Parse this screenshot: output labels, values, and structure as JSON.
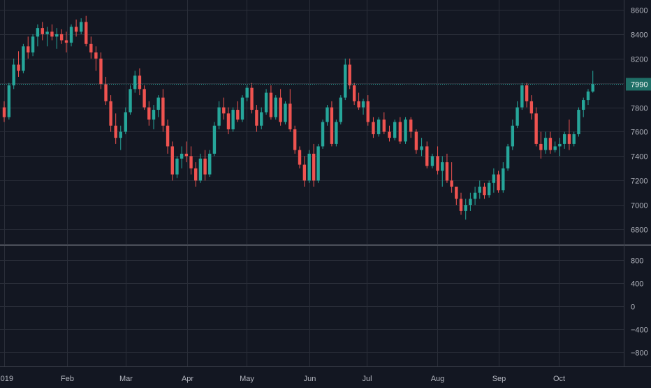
{
  "colors": {
    "background": "#131722",
    "grid": "#2a2e39",
    "axis_text": "#b2b5be",
    "up": "#26a69a",
    "down": "#ef5350",
    "divider": "#b2b5be",
    "last_price_bg": "#1f6f67"
  },
  "chart_data": [
    {
      "type": "candlestick",
      "title": "",
      "x_labels": [
        {
          "label": "2019",
          "t": 0.0
        },
        {
          "label": "Feb",
          "t": 31
        },
        {
          "label": "Mar",
          "t": 59
        },
        {
          "label": "Apr",
          "t": 90
        },
        {
          "label": "May",
          "t": 120
        },
        {
          "label": "Jun",
          "t": 151
        },
        {
          "label": "Jul",
          "t": 181
        },
        {
          "label": "Aug",
          "t": 212
        },
        {
          "label": "Sep",
          "t": 243
        },
        {
          "label": "Oct",
          "t": 273
        }
      ],
      "y_ticks": [
        6800,
        7000,
        7200,
        7400,
        7600,
        7800,
        8000,
        8200,
        8400,
        8600
      ],
      "y_tick_labels": [
        "6800",
        "7000",
        "7200",
        "7400",
        "7600",
        "7800",
        "8000",
        "8200",
        "8400",
        "8600"
      ],
      "ylim": [
        6680,
        8680
      ],
      "last_price": 7990,
      "last_price_label": "7990",
      "grid": true,
      "series": [
        {
          "ohlc_days": [
            [
              0,
              7800,
              7850,
              7680,
              7720
            ],
            [
              1,
              7720,
              8000,
              7700,
              7980
            ],
            [
              2,
              7980,
              8200,
              7950,
              8150
            ],
            [
              3,
              8150,
              8260,
              8050,
              8100
            ],
            [
              4,
              8100,
              8320,
              8080,
              8300
            ],
            [
              5,
              8300,
              8380,
              8200,
              8250
            ],
            [
              6,
              8250,
              8400,
              8220,
              8380
            ],
            [
              7,
              8380,
              8480,
              8300,
              8450
            ],
            [
              8,
              8450,
              8500,
              8350,
              8400
            ],
            [
              9,
              8400,
              8460,
              8300,
              8420
            ],
            [
              10,
              8420,
              8480,
              8350,
              8380
            ],
            [
              11,
              8380,
              8450,
              8280,
              8400
            ],
            [
              12,
              8400,
              8440,
              8320,
              8350
            ],
            [
              13,
              8350,
              8420,
              8250,
              8330
            ],
            [
              14,
              8330,
              8480,
              8300,
              8460
            ],
            [
              15,
              8460,
              8520,
              8380,
              8420
            ],
            [
              16,
              8420,
              8530,
              8400,
              8500
            ],
            [
              17,
              8500,
              8550,
              8300,
              8320
            ],
            [
              18,
              8320,
              8380,
              8200,
              8250
            ],
            [
              19,
              8250,
              8300,
              8100,
              8200
            ],
            [
              20,
              8200,
              8250,
              7950,
              7990
            ],
            [
              21,
              7990,
              8050,
              7820,
              7850
            ],
            [
              22,
              7850,
              7900,
              7600,
              7650
            ],
            [
              23,
              7650,
              7750,
              7500,
              7550
            ],
            [
              24,
              7550,
              7650,
              7450,
              7600
            ],
            [
              25,
              7600,
              7800,
              7580,
              7760
            ],
            [
              26,
              7760,
              7980,
              7740,
              7950
            ],
            [
              27,
              7950,
              8100,
              7920,
              8060
            ],
            [
              28,
              8060,
              8120,
              7900,
              7950
            ],
            [
              29,
              7950,
              7980,
              7780,
              7800
            ],
            [
              30,
              7800,
              7850,
              7650,
              7700
            ],
            [
              31,
              7700,
              7820,
              7620,
              7780
            ],
            [
              32,
              7780,
              7900,
              7720,
              7880
            ],
            [
              33,
              7880,
              7950,
              7600,
              7650
            ],
            [
              34,
              7650,
              7700,
              7420,
              7480
            ],
            [
              35,
              7480,
              7520,
              7200,
              7250
            ],
            [
              36,
              7250,
              7400,
              7220,
              7380
            ],
            [
              37,
              7380,
              7480,
              7300,
              7420
            ],
            [
              38,
              7420,
              7520,
              7350,
              7400
            ],
            [
              39,
              7400,
              7480,
              7250,
              7300
            ],
            [
              40,
              7300,
              7350,
              7150,
              7200
            ],
            [
              41,
              7200,
              7420,
              7180,
              7380
            ],
            [
              42,
              7380,
              7450,
              7200,
              7250
            ],
            [
              43,
              7250,
              7450,
              7230,
              7420
            ],
            [
              44,
              7420,
              7680,
              7400,
              7650
            ],
            [
              45,
              7650,
              7850,
              7620,
              7800
            ],
            [
              46,
              7800,
              7880,
              7700,
              7750
            ],
            [
              47,
              7750,
              7800,
              7580,
              7620
            ],
            [
              48,
              7620,
              7800,
              7600,
              7780
            ],
            [
              49,
              7780,
              7850,
              7680,
              7700
            ],
            [
              50,
              7700,
              7900,
              7680,
              7880
            ],
            [
              51,
              7880,
              7980,
              7850,
              7960
            ],
            [
              52,
              7960,
              8000,
              7750,
              7780
            ],
            [
              53,
              7780,
              7820,
              7600,
              7650
            ],
            [
              54,
              7650,
              7800,
              7620,
              7760
            ],
            [
              55,
              7760,
              7950,
              7740,
              7920
            ],
            [
              56,
              7920,
              7980,
              7700,
              7720
            ],
            [
              57,
              7720,
              7900,
              7700,
              7880
            ],
            [
              58,
              7880,
              7950,
              7650,
              7680
            ],
            [
              59,
              7680,
              7850,
              7660,
              7830
            ],
            [
              60,
              7830,
              7950,
              7600,
              7620
            ],
            [
              61,
              7620,
              7650,
              7420,
              7450
            ],
            [
              62,
              7450,
              7480,
              7300,
              7330
            ],
            [
              63,
              7330,
              7400,
              7150,
              7200
            ],
            [
              64,
              7200,
              7450,
              7180,
              7420
            ],
            [
              65,
              7420,
              7500,
              7150,
              7200
            ],
            [
              66,
              7200,
              7500,
              7180,
              7480
            ],
            [
              67,
              7480,
              7700,
              7460,
              7680
            ],
            [
              68,
              7680,
              7820,
              7650,
              7800
            ],
            [
              69,
              7800,
              7850,
              7480,
              7500
            ],
            [
              70,
              7500,
              7700,
              7480,
              7680
            ],
            [
              71,
              7680,
              7900,
              7660,
              7880
            ],
            [
              72,
              7880,
              8200,
              7860,
              8150
            ],
            [
              73,
              8150,
              8200,
              7950,
              7980
            ],
            [
              74,
              7980,
              8000,
              7820,
              7850
            ],
            [
              75,
              7850,
              7920,
              7780,
              7800
            ],
            [
              76,
              7800,
              7870,
              7740,
              7850
            ],
            [
              77,
              7850,
              7900,
              7650,
              7680
            ],
            [
              78,
              7680,
              7720,
              7550,
              7580
            ],
            [
              79,
              7580,
              7720,
              7560,
              7700
            ],
            [
              80,
              7700,
              7760,
              7580,
              7600
            ],
            [
              81,
              7600,
              7650,
              7520,
              7550
            ],
            [
              82,
              7550,
              7700,
              7530,
              7680
            ],
            [
              83,
              7680,
              7720,
              7500,
              7520
            ],
            [
              84,
              7520,
              7720,
              7500,
              7700
            ],
            [
              85,
              7700,
              7720,
              7550,
              7600
            ],
            [
              86,
              7600,
              7620,
              7420,
              7450
            ],
            [
              87,
              7450,
              7550,
              7400,
              7480
            ],
            [
              88,
              7480,
              7520,
              7300,
              7320
            ],
            [
              89,
              7320,
              7420,
              7300,
              7400
            ],
            [
              90,
              7400,
              7480,
              7250,
              7280
            ],
            [
              91,
              7280,
              7400,
              7150,
              7350
            ],
            [
              92,
              7350,
              7420,
              7180,
              7200
            ],
            [
              93,
              7200,
              7350,
              7100,
              7150
            ],
            [
              94,
              7150,
              7050,
              7000,
              7050
            ],
            [
              95,
              7050,
              7100,
              6920,
              6950
            ],
            [
              96,
              6950,
              7050,
              6880,
              7000
            ],
            [
              97,
              7000,
              7100,
              6950,
              7050
            ],
            [
              98,
              7050,
              7150,
              7000,
              7100
            ],
            [
              99,
              7100,
              7200,
              7050,
              7150
            ],
            [
              100,
              7150,
              7180,
              7050,
              7080
            ],
            [
              101,
              7080,
              7200,
              7060,
              7180
            ],
            [
              102,
              7180,
              7300,
              7100,
              7250
            ],
            [
              103,
              7250,
              7280,
              7100,
              7120
            ],
            [
              104,
              7120,
              7350,
              7100,
              7300
            ],
            [
              105,
              7300,
              7500,
              7280,
              7480
            ],
            [
              106,
              7480,
              7700,
              7450,
              7650
            ],
            [
              107,
              7650,
              7850,
              7630,
              7800
            ],
            [
              108,
              7800,
              8000,
              7780,
              7980
            ],
            [
              109,
              7980,
              8000,
              7800,
              7850
            ],
            [
              110,
              7850,
              7900,
              7700,
              7750
            ],
            [
              111,
              7750,
              7800,
              7480,
              7500
            ],
            [
              112,
              7500,
              7600,
              7380,
              7450
            ],
            [
              113,
              7450,
              7600,
              7420,
              7550
            ],
            [
              114,
              7550,
              7600,
              7420,
              7450
            ],
            [
              115,
              7450,
              7520,
              7430,
              7480
            ],
            [
              116,
              7480,
              7550,
              7400,
              7500
            ],
            [
              117,
              7500,
              7600,
              7460,
              7580
            ],
            [
              118,
              7580,
              7700,
              7450,
              7500
            ],
            [
              119,
              7500,
              7600,
              7480,
              7580
            ],
            [
              120,
              7580,
              7800,
              7560,
              7780
            ],
            [
              121,
              7780,
              7880,
              7720,
              7860
            ],
            [
              122,
              7860,
              7950,
              7820,
              7930
            ],
            [
              123,
              7930,
              8100,
              7920,
              7990
            ]
          ]
        }
      ]
    },
    {
      "type": "indicator",
      "title": "",
      "y_ticks": [
        -800,
        -400,
        0,
        400,
        800
      ],
      "y_tick_labels": [
        "−800",
        "−400",
        "0",
        "400",
        "800"
      ],
      "ylim": [
        -1050,
        1050
      ],
      "grid": true,
      "series": []
    }
  ]
}
